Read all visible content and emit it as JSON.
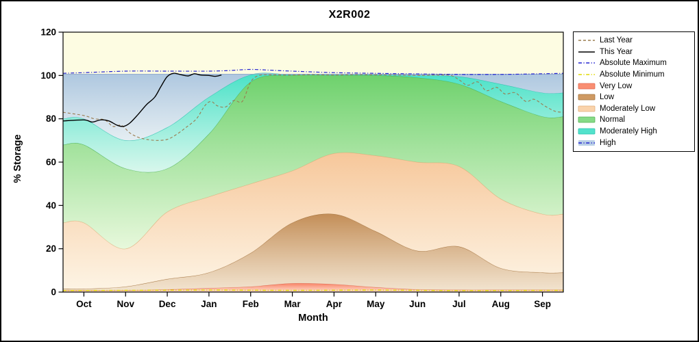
{
  "window": {
    "background": "#ffffff",
    "border_color": "#000000"
  },
  "title": "X2R002",
  "axes": {
    "x_label": "Month",
    "y_label": "% Storage",
    "y_ticks": [
      "0",
      "20",
      "40",
      "60",
      "80",
      "100",
      "120"
    ],
    "plot_background": "#fdfce2",
    "axis_color": "#000000"
  },
  "legend": {
    "items": [
      {
        "label": "Last Year",
        "line": "#9a7b4f",
        "dash": "dashed"
      },
      {
        "label": "This Year",
        "line": "#000000",
        "dash": "solid"
      },
      {
        "label": "Absolute Maximum",
        "line": "#2020d0",
        "dash": "dashdot"
      },
      {
        "label": "Absolute Minimum",
        "line": "#e0da00",
        "dash": "dashdot"
      },
      {
        "label": "Very Low",
        "fill": "#f98e72",
        "line": "#df6a52"
      },
      {
        "label": "Low",
        "fill": "#cf9a63",
        "line": "#a3743f"
      },
      {
        "label": "Moderately Low",
        "fill": "#fad3ab",
        "line": "#e0ac78"
      },
      {
        "label": "Normal",
        "fill": "#86da86",
        "line": "#54b354"
      },
      {
        "label": "Moderately High",
        "fill": "#52e2cc",
        "line": "#2bc4ae"
      },
      {
        "label": "High",
        "fill": "#b9cfe6",
        "line": "#2020d0",
        "dash": "dashdot"
      }
    ]
  },
  "chart_data": {
    "type": "area",
    "title": "X2R002",
    "xlabel": "Month",
    "ylabel": "% Storage",
    "ylim": [
      0,
      120
    ],
    "legend_position": "right",
    "grid": false,
    "categories": [
      "Oct",
      "Nov",
      "Dec",
      "Jan",
      "Feb",
      "Mar",
      "Apr",
      "May",
      "Jun",
      "Jul",
      "Aug",
      "Sep"
    ],
    "bands": [
      {
        "name": "Very Low",
        "upper": [
          0.8,
          0.8,
          1.2,
          1.8,
          2.5,
          4,
          3.6,
          2.2,
          1.2,
          1,
          1,
          1
        ],
        "color_top": "#f87d60",
        "color_bottom": "#ffd9c9",
        "edge": "#df6a52"
      },
      {
        "name": "Low",
        "upper": [
          1.5,
          2.5,
          6,
          9,
          18,
          32,
          36,
          28,
          19,
          21,
          11,
          9
        ],
        "color_top": "#c08850",
        "color_bottom": "#f0dfcb",
        "edge": "#a3743f"
      },
      {
        "name": "Moderately Low",
        "upper": [
          32,
          20,
          37,
          44,
          50,
          56,
          64,
          63,
          60,
          58,
          43,
          36
        ],
        "color_top": "#f6c496",
        "color_bottom": "#fdf2e4",
        "edge": "#e0ac78"
      },
      {
        "name": "Normal",
        "upper": [
          68,
          57,
          57,
          73,
          97,
          100,
          100,
          100,
          99,
          96,
          88,
          81
        ],
        "color_top": "#66cf66",
        "color_bottom": "#e3f7da",
        "edge": "#54b354"
      },
      {
        "name": "Moderately High",
        "upper": [
          80,
          70,
          76,
          90,
          100.3,
          100.3,
          100.3,
          100.3,
          100,
          99.5,
          96,
          92
        ],
        "color_top": "#3fe0c6",
        "color_bottom": "#d2f6ee",
        "edge": "#2bc4ae"
      },
      {
        "name": "High",
        "upper": [
          100.6,
          100.6,
          100.6,
          100.6,
          100.6,
          100.6,
          100.6,
          100.6,
          100.6,
          100.6,
          100.6,
          100.6
        ],
        "color_top": "#a9c4df",
        "color_bottom": "#e0ebf5",
        "edge": "#8fa9c9"
      }
    ],
    "lines": [
      {
        "name": "Absolute Minimum",
        "color": "#e0da00",
        "dash": "dashdot",
        "width": 1.4,
        "x": [
          -0.5,
          1,
          3,
          5,
          7,
          9,
          11.5
        ],
        "v": [
          0.7,
          0.8,
          0.9,
          0.8,
          0.9,
          0.7,
          0.8
        ]
      },
      {
        "name": "Last Year",
        "color": "#9a7b4f",
        "dash": "dashed",
        "width": 1.1,
        "x": [
          -0.5,
          0,
          0.25,
          0.5,
          0.7,
          0.9,
          1.1,
          1.3,
          1.5,
          1.75,
          2.0,
          2.2,
          2.45,
          2.7,
          2.9,
          3.05,
          3.2,
          3.4,
          3.6,
          3.8,
          4.0,
          4.2,
          4.5,
          5.0,
          5.5,
          6.0,
          6.5,
          7.0,
          7.5,
          8.0,
          8.5,
          8.8,
          9.0,
          9.2,
          9.45,
          9.65,
          9.9,
          10.1,
          10.35,
          10.6,
          10.8,
          11.05,
          11.3,
          11.5
        ],
        "v": [
          83,
          81.5,
          80,
          79.5,
          76.5,
          77,
          73.5,
          71.5,
          70.5,
          70,
          70.5,
          72.5,
          76,
          80,
          86,
          88,
          86,
          85.5,
          88.5,
          88,
          97,
          100,
          100.3,
          100.2,
          100.4,
          100.2,
          100.4,
          100.3,
          100.2,
          100,
          100.2,
          100,
          98,
          95.5,
          97,
          93,
          94.5,
          91.5,
          92,
          88,
          89,
          86,
          83.5,
          83
        ]
      },
      {
        "name": "Absolute Maximum",
        "color": "#2020d0",
        "dash": "dashdot",
        "width": 1.2,
        "x": [
          -0.5,
          0,
          1,
          2,
          3,
          3.5,
          4,
          4.5,
          5,
          6,
          7,
          8,
          9,
          10,
          11,
          11.5
        ],
        "v": [
          101,
          101.3,
          102,
          102,
          102,
          102.3,
          102.8,
          102.4,
          102,
          101.3,
          101,
          100.7,
          100.5,
          100.5,
          100.8,
          101
        ]
      },
      {
        "name": "This Year",
        "color": "#000000",
        "dash": "solid",
        "width": 1.4,
        "x": [
          -0.5,
          0,
          0.2,
          0.4,
          0.6,
          0.8,
          0.95,
          1.1,
          1.3,
          1.5,
          1.7,
          1.85,
          2.0,
          2.15,
          2.3,
          2.5,
          2.65,
          2.8,
          3.0,
          3.15,
          3.3
        ],
        "v": [
          79,
          79.5,
          78.5,
          79.5,
          79,
          77,
          76.5,
          78,
          82,
          86.5,
          90,
          95,
          99.5,
          101,
          100.5,
          99.8,
          100.8,
          100.2,
          100,
          99.6,
          100.2
        ]
      }
    ]
  }
}
